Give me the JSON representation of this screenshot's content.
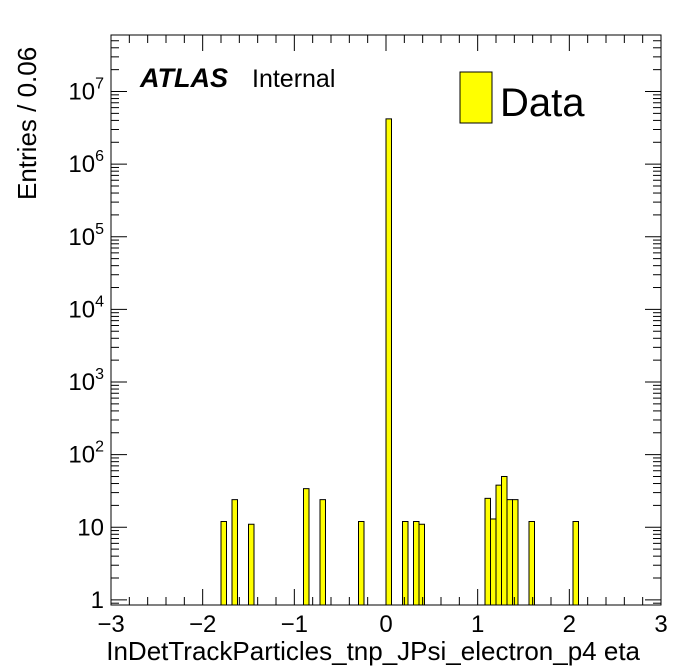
{
  "chart_data": {
    "type": "bar",
    "yscale": "log",
    "xlim": [
      -3,
      3
    ],
    "ylim": [
      0.85,
      60000000
    ],
    "bin_width": 0.06,
    "xlabel": "InDetTrackParticles_tnp_JPsi_electron_p4 eta",
    "ylabel": "Entries / 0.06",
    "atlas_label": "ATLAS",
    "atlas_status": "Internal",
    "legend": {
      "entries": [
        "Data"
      ],
      "position": "top-right"
    },
    "fill_color": "#ffff00",
    "x_tick_labels": [
      "−3",
      "−2",
      "−1",
      "0",
      "1",
      "2",
      "3"
    ],
    "x_tick_values": [
      -3,
      -2,
      -1,
      0,
      1,
      2,
      3
    ],
    "y_tick_labels": [
      {
        "value": 1,
        "base": "1",
        "exp": ""
      },
      {
        "value": 10,
        "base": "10",
        "exp": ""
      },
      {
        "value": 100,
        "base": "10",
        "exp": "2"
      },
      {
        "value": 1000,
        "base": "10",
        "exp": "3"
      },
      {
        "value": 10000,
        "base": "10",
        "exp": "4"
      },
      {
        "value": 100000,
        "base": "10",
        "exp": "5"
      },
      {
        "value": 1000000,
        "base": "10",
        "exp": "6"
      },
      {
        "value": 10000000,
        "base": "10",
        "exp": "7"
      }
    ],
    "bins": [
      {
        "x0": -1.8,
        "x1": -1.74,
        "y": 12
      },
      {
        "x0": -1.68,
        "x1": -1.62,
        "y": 24
      },
      {
        "x0": -1.5,
        "x1": -1.44,
        "y": 11
      },
      {
        "x0": -0.9,
        "x1": -0.84,
        "y": 34
      },
      {
        "x0": -0.72,
        "x1": -0.66,
        "y": 24
      },
      {
        "x0": -0.3,
        "x1": -0.24,
        "y": 12
      },
      {
        "x0": 0.0,
        "x1": 0.06,
        "y": 4200000
      },
      {
        "x0": 0.18,
        "x1": 0.24,
        "y": 12
      },
      {
        "x0": 0.3,
        "x1": 0.36,
        "y": 12
      },
      {
        "x0": 0.36,
        "x1": 0.42,
        "y": 11
      },
      {
        "x0": 1.08,
        "x1": 1.14,
        "y": 25
      },
      {
        "x0": 1.14,
        "x1": 1.2,
        "y": 13
      },
      {
        "x0": 1.2,
        "x1": 1.26,
        "y": 38
      },
      {
        "x0": 1.26,
        "x1": 1.32,
        "y": 50
      },
      {
        "x0": 1.32,
        "x1": 1.38,
        "y": 24
      },
      {
        "x0": 1.38,
        "x1": 1.44,
        "y": 24
      },
      {
        "x0": 1.56,
        "x1": 1.62,
        "y": 12
      },
      {
        "x0": 2.04,
        "x1": 2.1,
        "y": 12
      }
    ]
  }
}
